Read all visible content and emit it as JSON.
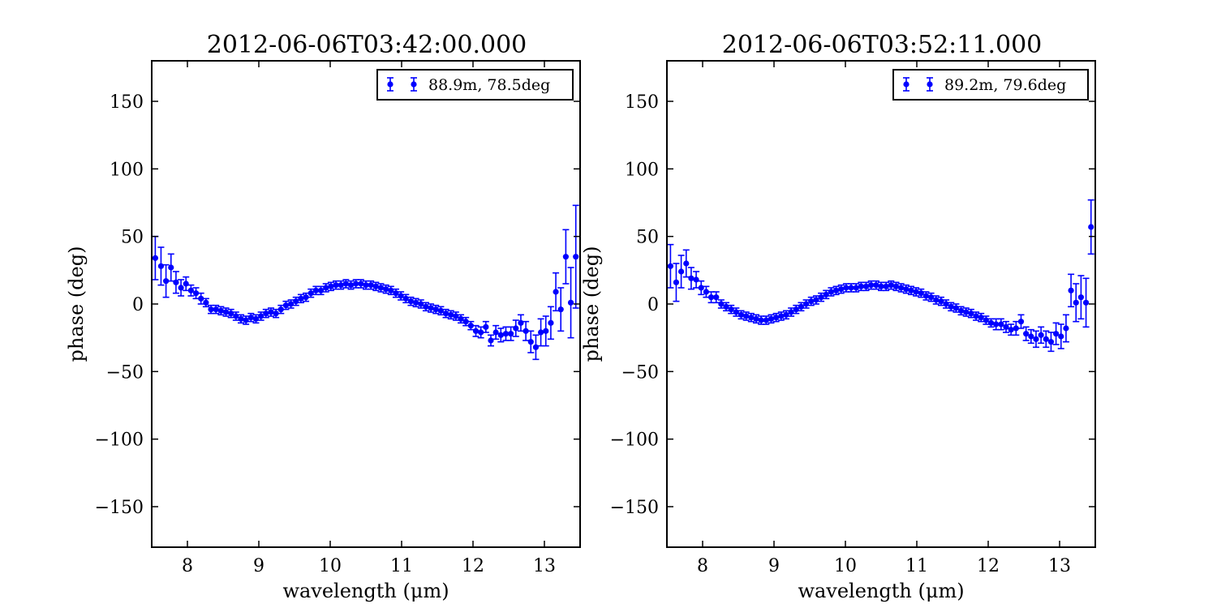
{
  "colors": {
    "series": "#0000ff",
    "axes": "#000000",
    "background": "#ffffff"
  },
  "chart_data": [
    {
      "type": "scatter",
      "title": "2012-06-06T03:42:00.000",
      "xlabel": "wavelength (μm)",
      "ylabel": "phase (deg)",
      "xlim": [
        7.5,
        13.5
      ],
      "ylim": [
        -180,
        180
      ],
      "xticks": [
        8,
        9,
        10,
        11,
        12,
        13
      ],
      "yticks": [
        -150,
        -100,
        -50,
        0,
        50,
        100,
        150
      ],
      "xtick_labels": [
        "8",
        "9",
        "10",
        "11",
        "12",
        "13"
      ],
      "ytick_labels": [
        "−150",
        "−100",
        "−50",
        "0",
        "50",
        "100",
        "150"
      ],
      "grid": false,
      "legend_position": "top-right",
      "series": [
        {
          "name": "88.9m, 78.5deg",
          "x": [
            7.55,
            7.63,
            7.7,
            7.77,
            7.84,
            7.91,
            7.98,
            8.05,
            8.12,
            8.19,
            8.26,
            8.33,
            8.4,
            8.47,
            8.54,
            8.61,
            8.68,
            8.75,
            8.82,
            8.89,
            8.96,
            9.03,
            9.1,
            9.17,
            9.24,
            9.31,
            9.38,
            9.45,
            9.52,
            9.59,
            9.66,
            9.73,
            9.8,
            9.87,
            9.94,
            10.01,
            10.08,
            10.15,
            10.22,
            10.29,
            10.36,
            10.43,
            10.5,
            10.57,
            10.64,
            10.71,
            10.78,
            10.85,
            10.92,
            10.99,
            11.06,
            11.13,
            11.2,
            11.27,
            11.34,
            11.41,
            11.48,
            11.55,
            11.62,
            11.69,
            11.76,
            11.83,
            11.9,
            11.97,
            12.04,
            12.11,
            12.18,
            12.25,
            12.32,
            12.39,
            12.46,
            12.53,
            12.6,
            12.67,
            12.74,
            12.81,
            12.88,
            12.95,
            13.02,
            13.09,
            13.16,
            13.23,
            13.3,
            13.37,
            13.44
          ],
          "y": [
            34,
            28,
            17,
            27,
            16,
            12,
            15,
            10,
            8,
            4,
            1,
            -4,
            -4,
            -5,
            -6,
            -7,
            -9,
            -11,
            -12,
            -10,
            -11,
            -9,
            -7,
            -6,
            -7,
            -4,
            -1,
            0,
            2,
            4,
            5,
            8,
            10,
            10,
            12,
            13,
            14,
            14,
            15,
            14,
            15,
            15,
            14,
            14,
            13,
            12,
            11,
            10,
            8,
            6,
            4,
            2,
            1,
            0,
            -2,
            -3,
            -4,
            -5,
            -7,
            -8,
            -9,
            -11,
            -13,
            -16,
            -20,
            -21,
            -17,
            -27,
            -21,
            -23,
            -22,
            -22,
            -18,
            -14,
            -20,
            -28,
            -32,
            -21,
            -20,
            -14,
            9,
            -4,
            35,
            1,
            35
          ],
          "err": [
            16,
            14,
            12,
            10,
            8,
            6,
            5,
            4,
            4,
            4,
            3,
            3,
            3,
            3,
            3,
            3,
            3,
            3,
            3,
            3,
            3,
            3,
            3,
            3,
            3,
            3,
            3,
            3,
            3,
            3,
            3,
            3,
            3,
            3,
            3,
            3,
            3,
            3,
            3,
            3,
            3,
            3,
            3,
            3,
            3,
            3,
            3,
            3,
            3,
            3,
            3,
            3,
            3,
            3,
            3,
            3,
            3,
            3,
            3,
            3,
            3,
            3,
            3,
            3,
            4,
            4,
            4,
            4,
            5,
            5,
            5,
            5,
            6,
            6,
            7,
            8,
            9,
            10,
            11,
            12,
            14,
            16,
            20,
            26,
            38
          ]
        }
      ]
    },
    {
      "type": "scatter",
      "title": "2012-06-06T03:52:11.000",
      "xlabel": "wavelength (μm)",
      "ylabel": "phase (deg)",
      "xlim": [
        7.5,
        13.5
      ],
      "ylim": [
        -180,
        180
      ],
      "xticks": [
        8,
        9,
        10,
        11,
        12,
        13
      ],
      "yticks": [
        -150,
        -100,
        -50,
        0,
        50,
        100,
        150
      ],
      "xtick_labels": [
        "8",
        "9",
        "10",
        "11",
        "12",
        "13"
      ],
      "ytick_labels": [
        "−150",
        "−100",
        "−50",
        "0",
        "50",
        "100",
        "150"
      ],
      "grid": false,
      "legend_position": "top-right",
      "series": [
        {
          "name": "89.2m, 79.6deg",
          "x": [
            7.55,
            7.63,
            7.7,
            7.77,
            7.84,
            7.91,
            7.98,
            8.05,
            8.12,
            8.19,
            8.26,
            8.33,
            8.4,
            8.47,
            8.54,
            8.61,
            8.68,
            8.75,
            8.82,
            8.89,
            8.96,
            9.03,
            9.1,
            9.17,
            9.24,
            9.31,
            9.38,
            9.45,
            9.52,
            9.59,
            9.66,
            9.73,
            9.8,
            9.87,
            9.94,
            10.01,
            10.08,
            10.15,
            10.22,
            10.29,
            10.36,
            10.43,
            10.5,
            10.57,
            10.64,
            10.71,
            10.78,
            10.85,
            10.92,
            10.99,
            11.06,
            11.13,
            11.2,
            11.27,
            11.34,
            11.41,
            11.48,
            11.55,
            11.62,
            11.69,
            11.76,
            11.83,
            11.9,
            11.97,
            12.04,
            12.11,
            12.18,
            12.25,
            12.32,
            12.39,
            12.46,
            12.53,
            12.6,
            12.67,
            12.74,
            12.81,
            12.88,
            12.95,
            13.02,
            13.09,
            13.16,
            13.23,
            13.3,
            13.37,
            13.44
          ],
          "y": [
            28,
            16,
            24,
            30,
            19,
            18,
            12,
            9,
            5,
            5,
            0,
            -2,
            -4,
            -6,
            -8,
            -9,
            -10,
            -11,
            -12,
            -12,
            -11,
            -10,
            -9,
            -8,
            -6,
            -4,
            -2,
            0,
            2,
            3,
            5,
            7,
            9,
            10,
            11,
            12,
            12,
            12,
            13,
            13,
            14,
            14,
            13,
            13,
            14,
            13,
            12,
            11,
            10,
            9,
            8,
            6,
            5,
            3,
            2,
            0,
            -2,
            -3,
            -5,
            -6,
            -7,
            -9,
            -10,
            -12,
            -14,
            -15,
            -15,
            -17,
            -19,
            -18,
            -13,
            -22,
            -24,
            -26,
            -23,
            -26,
            -28,
            -22,
            -24,
            -18,
            10,
            1,
            5,
            1,
            57
          ],
          "err": [
            16,
            14,
            12,
            10,
            8,
            6,
            5,
            4,
            4,
            4,
            3,
            3,
            3,
            3,
            3,
            3,
            3,
            3,
            3,
            3,
            3,
            3,
            3,
            3,
            3,
            3,
            3,
            3,
            3,
            3,
            3,
            3,
            3,
            3,
            3,
            3,
            3,
            3,
            3,
            3,
            3,
            3,
            3,
            3,
            3,
            3,
            3,
            3,
            3,
            3,
            3,
            3,
            3,
            3,
            3,
            3,
            3,
            3,
            3,
            3,
            3,
            3,
            3,
            3,
            3,
            4,
            4,
            4,
            4,
            5,
            5,
            5,
            5,
            6,
            6,
            6,
            7,
            8,
            9,
            10,
            12,
            14,
            16,
            18,
            20
          ]
        }
      ]
    }
  ]
}
